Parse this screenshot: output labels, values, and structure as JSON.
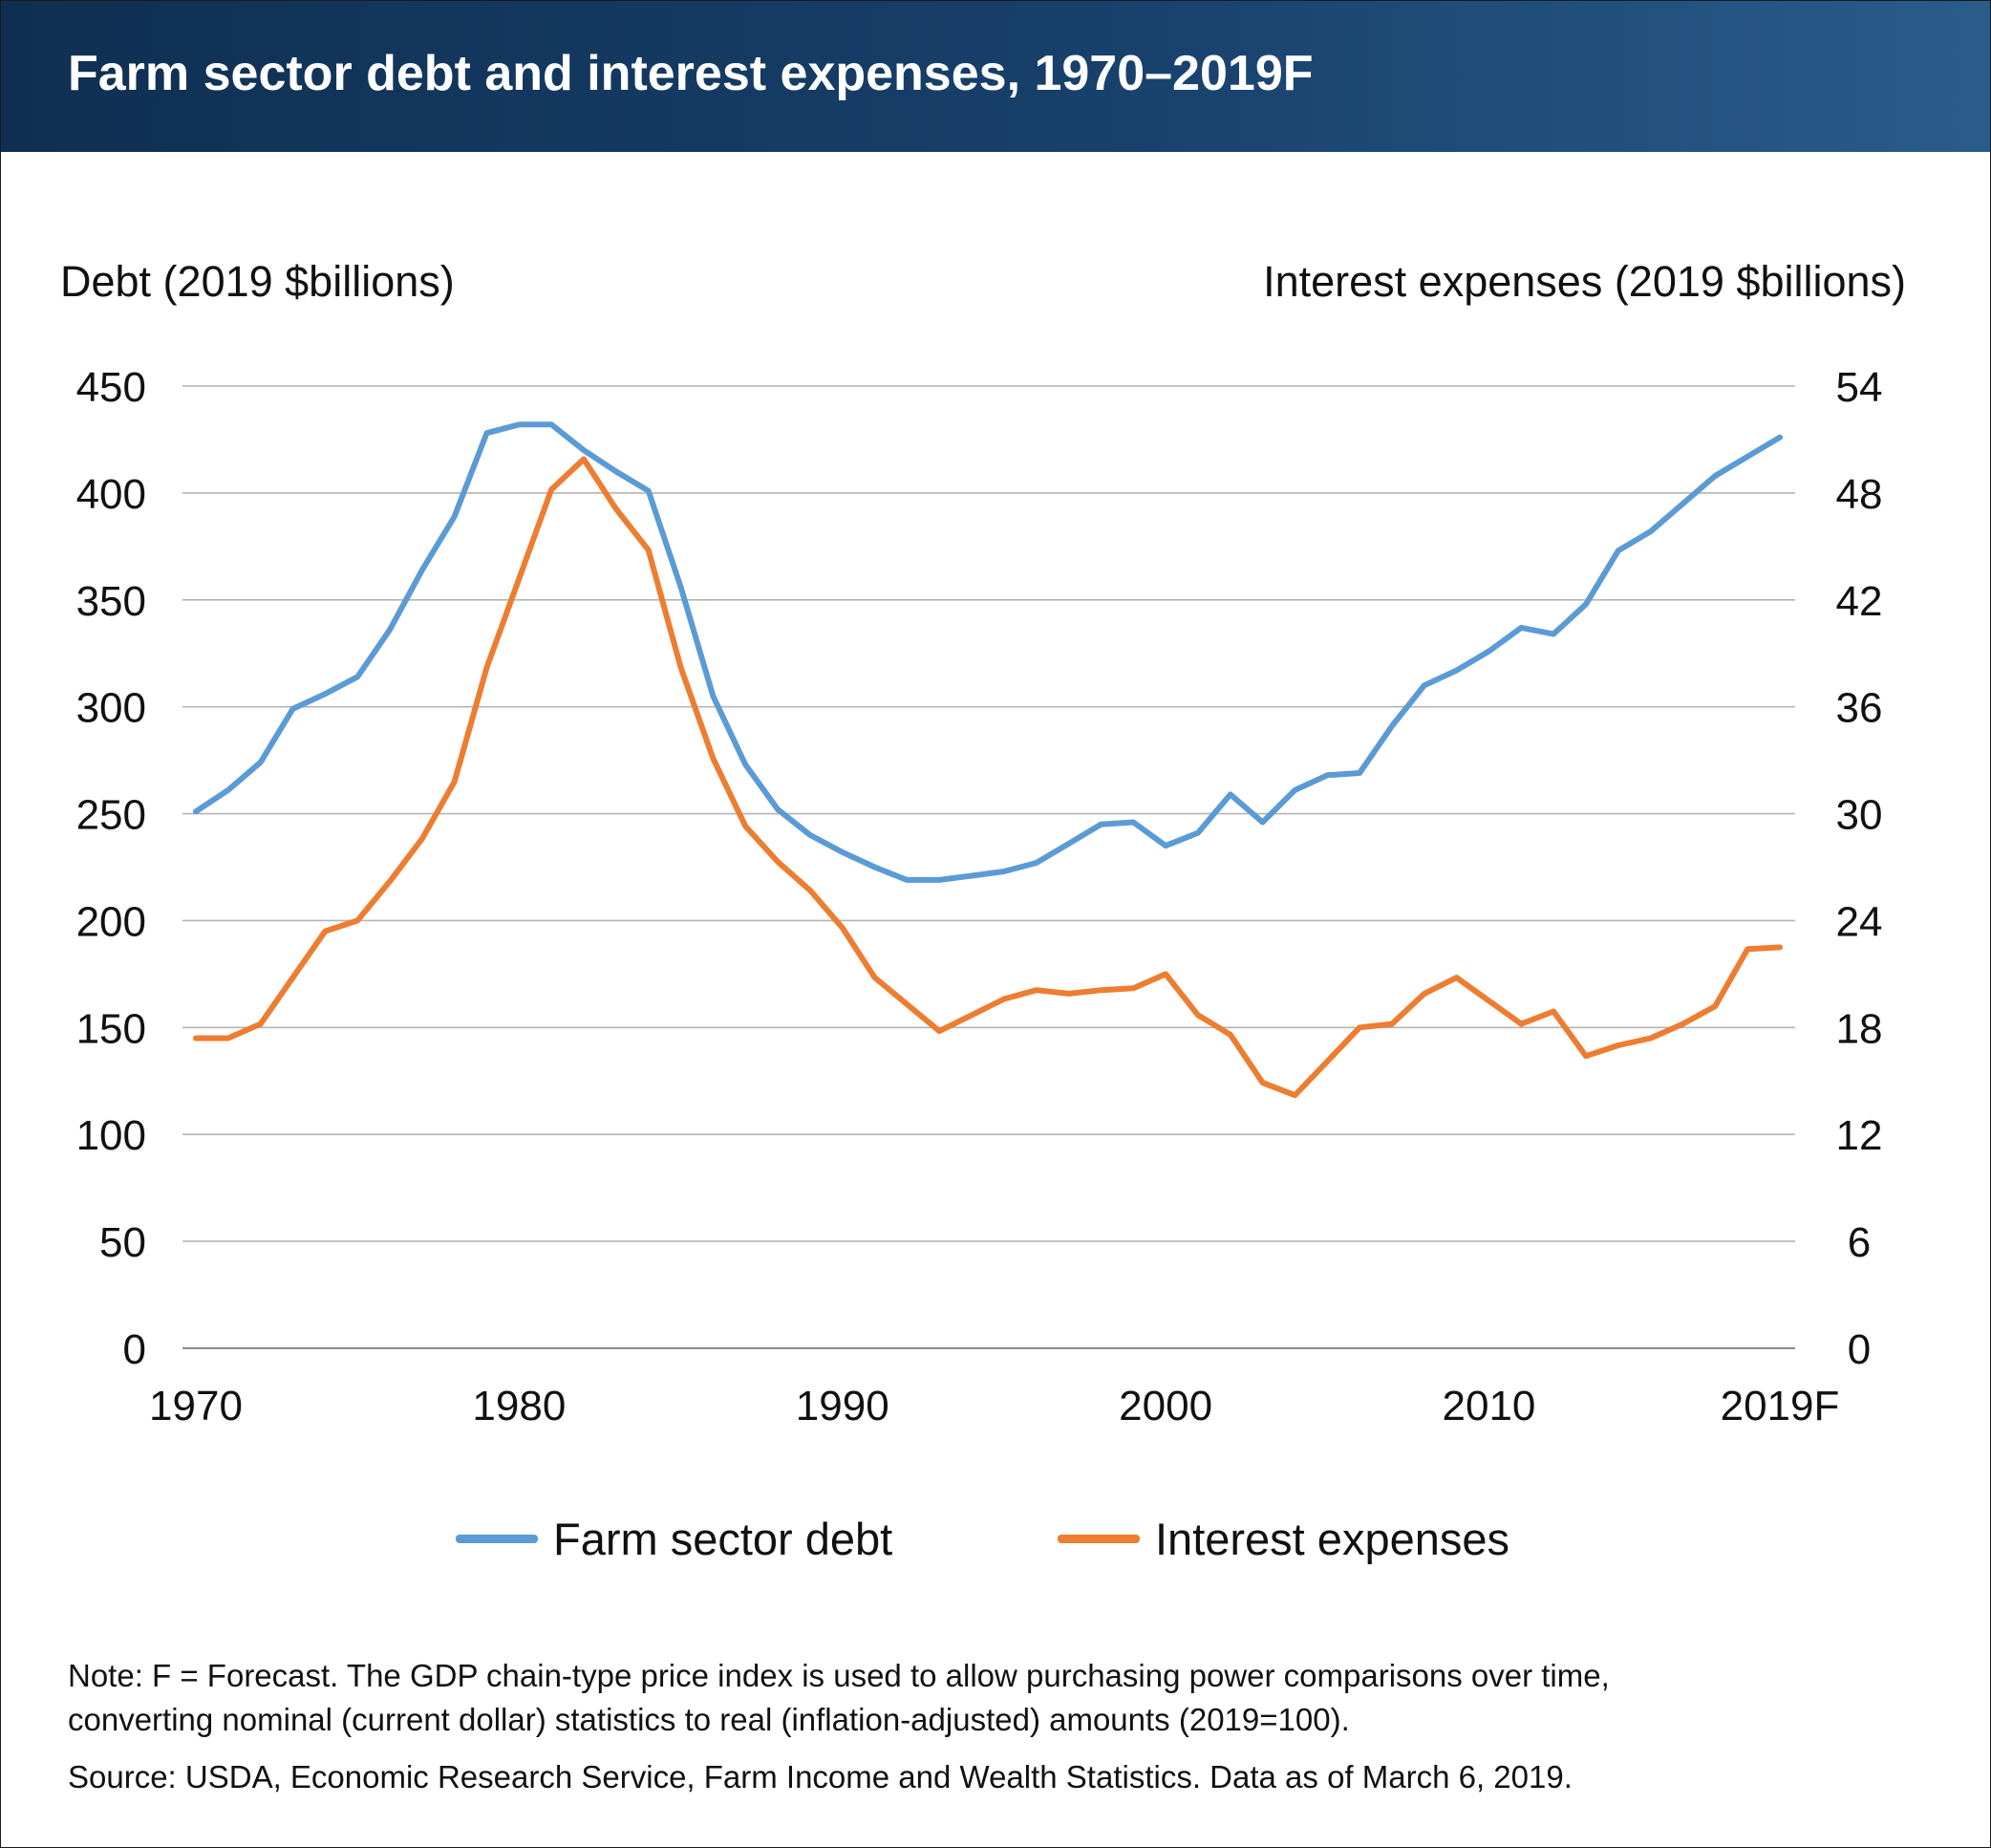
{
  "title": "Farm sector debt and interest expenses, 1970–2019F",
  "colors": {
    "header_dark": "#0f2f52",
    "header_light": "#2a5c8a",
    "debt": "#5b9bd5",
    "interest": "#ed7d31",
    "grid": "#b4b4b4"
  },
  "legend": {
    "debt": "Farm sector debt",
    "interest": "Interest expenses"
  },
  "note": {
    "line1": "Note: F = Forecast. The GDP chain-type price index is used to allow purchasing power comparisons over time,",
    "line2": "converting nominal (current dollar) statistics to real (inflation-adjusted) amounts (2019=100)."
  },
  "source": "Source: USDA, Economic Research Service, Farm Income and Wealth Statistics. Data as of March 6, 2019.",
  "chart_data": {
    "type": "line",
    "title": "Farm sector debt and interest expenses, 1970–2019F",
    "ylabel_left": "Debt (2019 $billions)",
    "ylabel_right": "Interest expenses (2019 $billions)",
    "ylim_left": [
      0,
      450
    ],
    "ylim_right": [
      0,
      54
    ],
    "yticks_left": [
      "0",
      "50",
      "100",
      "150",
      "200",
      "250",
      "300",
      "350",
      "400",
      "450"
    ],
    "yticks_right": [
      "0",
      "6",
      "12",
      "18",
      "24",
      "30",
      "36",
      "42",
      "48",
      "54"
    ],
    "xlim": [
      1970,
      2019
    ],
    "xticks": [
      {
        "x": 1970,
        "label": "1970"
      },
      {
        "x": 1980,
        "label": "1980"
      },
      {
        "x": 1990,
        "label": "1990"
      },
      {
        "x": 2000,
        "label": "2000"
      },
      {
        "x": 2010,
        "label": "2010"
      },
      {
        "x": 2019,
        "label": "2019F"
      }
    ],
    "grid": true,
    "legend_position": "bottom",
    "x": [
      1970,
      1971,
      1972,
      1973,
      1974,
      1975,
      1976,
      1977,
      1978,
      1979,
      1980,
      1981,
      1982,
      1983,
      1984,
      1985,
      1986,
      1987,
      1988,
      1989,
      1990,
      1991,
      1992,
      1993,
      1994,
      1995,
      1996,
      1997,
      1998,
      1999,
      2000,
      2001,
      2002,
      2003,
      2004,
      2005,
      2006,
      2007,
      2008,
      2009,
      2010,
      2011,
      2012,
      2013,
      2014,
      2015,
      2016,
      2017,
      2018,
      2019
    ],
    "series": [
      {
        "name": "Farm sector debt",
        "axis": "left",
        "color": "#5b9bd5",
        "values": [
          251,
          261,
          274,
          299,
          306,
          314,
          336,
          364,
          389,
          428,
          432,
          432,
          420,
          410,
          401,
          356,
          305,
          273,
          252,
          240,
          232,
          225,
          219,
          219,
          221,
          223,
          227,
          236,
          245,
          246,
          235,
          241,
          259,
          246,
          261,
          268,
          269,
          291,
          310,
          317,
          326,
          337,
          334,
          348,
          373,
          382,
          395,
          408,
          417,
          426
        ]
      },
      {
        "name": "Interest expenses",
        "axis": "right",
        "color": "#ed7d31",
        "values": [
          17.4,
          17.4,
          18.2,
          20.8,
          23.4,
          24.0,
          26.2,
          28.6,
          31.8,
          38.2,
          43.2,
          48.2,
          49.9,
          47.1,
          44.8,
          38.2,
          33.1,
          29.3,
          27.3,
          25.7,
          23.6,
          20.8,
          19.3,
          17.8,
          18.7,
          19.6,
          20.1,
          19.9,
          20.1,
          20.2,
          21.0,
          18.7,
          17.6,
          14.9,
          14.2,
          16.1,
          18.0,
          18.2,
          19.9,
          20.8,
          19.5,
          18.2,
          18.9,
          16.4,
          17.0,
          17.4,
          18.2,
          19.2,
          22.4,
          22.5
        ]
      }
    ]
  }
}
